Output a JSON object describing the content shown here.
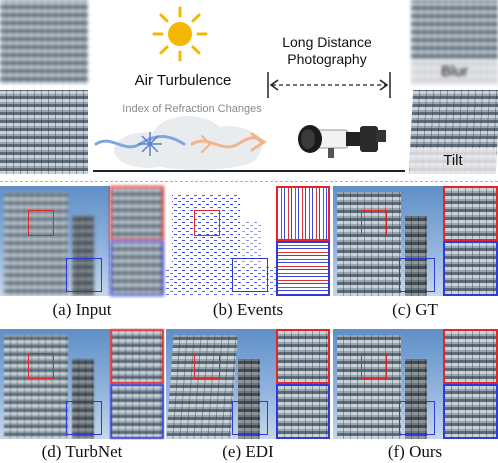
{
  "top_figure": {
    "air_turbulence_label": "Air Turbulence",
    "refraction_label": "Index of Refraction Changes",
    "long_distance_label_line1": "Long Distance",
    "long_distance_label_line2": "Photography",
    "blur_label": "Blur",
    "tilt_label": "Tilt"
  },
  "captions": {
    "input": "(a) Input",
    "events": "(b) Events",
    "gt": "(c) GT",
    "turbnet": "(d) TurbNet",
    "edi": "(e) EDI",
    "ours": "(f) Ours"
  },
  "colors": {
    "sun": "#f5b800",
    "zoom_red": "#e32727",
    "zoom_blue": "#2e3bd6",
    "wind_blue": "#7fa6e0",
    "wind_orange": "#f2b48a"
  }
}
